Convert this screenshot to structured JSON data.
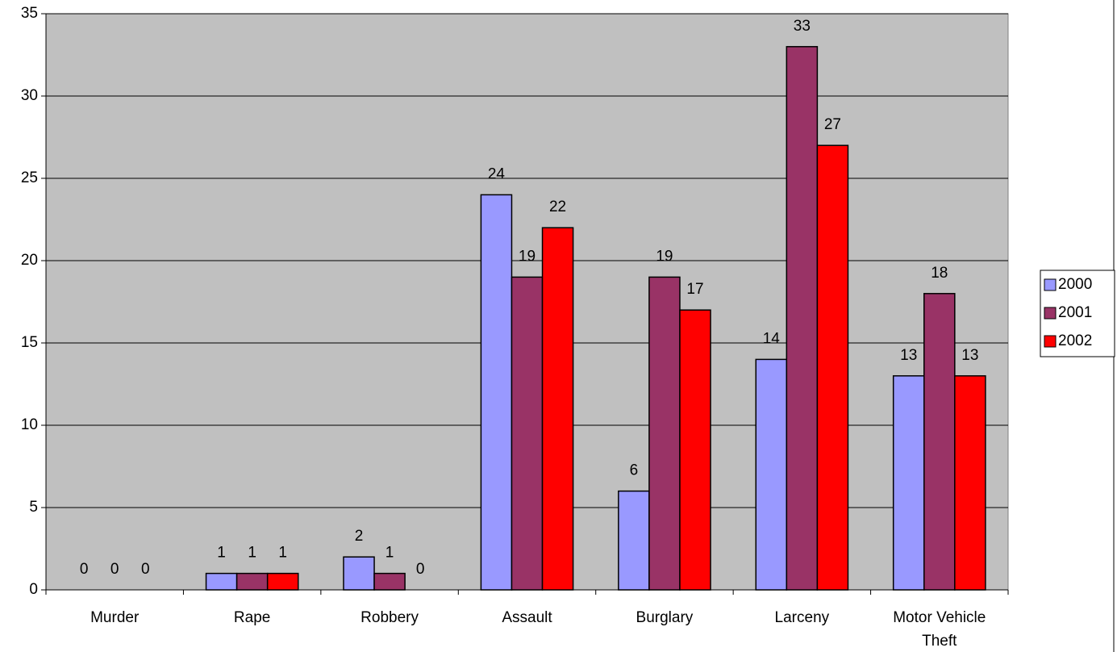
{
  "chart_data": {
    "type": "bar",
    "categories": [
      "Murder",
      "Rape",
      "Robbery",
      "Assault",
      "Burglary",
      "Larceny",
      "Motor Vehicle Theft"
    ],
    "series": [
      {
        "name": "2000",
        "color": "#9999ff",
        "values": [
          0,
          1,
          2,
          24,
          6,
          14,
          13
        ]
      },
      {
        "name": "2001",
        "color": "#993366",
        "values": [
          0,
          1,
          1,
          19,
          19,
          33,
          18
        ]
      },
      {
        "name": "2002",
        "color": "#ff0000",
        "values": [
          0,
          1,
          0,
          22,
          17,
          27,
          13
        ]
      }
    ],
    "ylim": [
      0,
      35
    ],
    "yticks": [
      0,
      5,
      10,
      15,
      20,
      25,
      30,
      35
    ],
    "grid": true,
    "legend": "right"
  }
}
